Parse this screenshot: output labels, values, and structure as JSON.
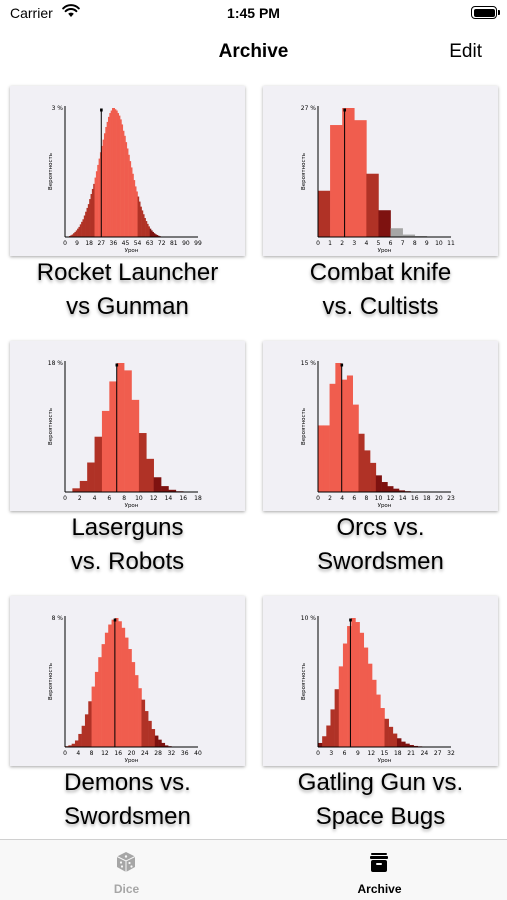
{
  "status_bar": {
    "carrier": "Carrier",
    "time": "1:45 PM"
  },
  "nav": {
    "title": "Archive",
    "edit_label": "Edit"
  },
  "colors": {
    "bar_main": "#f05d4e",
    "bar_dark": "#b03226",
    "bar_darker": "#7e1210",
    "bar_gray": "#a6a6a6",
    "card_bg": "#f1f0f5",
    "tab_inactive": "#a6a6a6",
    "tab_active": "#000000"
  },
  "items": [
    {
      "title_line1": "Rocket Launcher",
      "title_line2": "vs Gunman",
      "chart_data": {
        "type": "bar",
        "ylabel": "Вероятность",
        "xlabel": "Урон",
        "ymax_label": "3 %",
        "xlim": [
          0,
          99
        ],
        "xticks": [
          "0",
          "9",
          "18",
          "27",
          "36",
          "45",
          "54",
          "63",
          "72",
          "81",
          "90",
          "99"
        ],
        "mean": 27,
        "values": [
          0.05,
          0.1,
          0.2,
          0.4,
          0.7,
          1,
          1.5,
          2,
          2.6,
          3.3,
          4,
          5,
          6,
          7,
          8.5,
          10,
          11.5,
          13,
          15,
          17,
          19,
          21,
          23.5,
          26,
          28.5,
          31,
          33.5,
          36,
          38.5,
          41,
          43.5,
          45.5,
          47.5,
          49,
          50,
          51,
          51,
          50.5,
          50,
          49,
          48,
          46.5,
          44.5,
          42,
          40,
          37.5,
          35,
          32.5,
          30,
          27.5,
          25,
          22.5,
          20,
          18,
          16,
          14,
          12,
          10.5,
          9,
          7.5,
          6.3,
          5.2,
          4.2,
          3.3,
          2.6,
          2,
          1.5,
          1.1,
          0.8,
          0.55,
          0.35,
          0.2,
          0.1,
          0.05
        ],
        "colors": [
          "dark",
          "dark",
          "dark",
          "dark",
          "dark",
          "dark",
          "dark",
          "dark",
          "dark",
          "dark",
          "dark",
          "dark",
          "dark",
          "dark",
          "dark",
          "dark",
          "dark",
          "dark",
          "dark",
          "dark",
          "dark",
          "dark",
          "main",
          "main",
          "main",
          "main",
          "main",
          "main",
          "main",
          "main",
          "main",
          "main",
          "main",
          "main",
          "main",
          "main",
          "main",
          "main",
          "main",
          "main",
          "main",
          "main",
          "main",
          "main",
          "main",
          "main",
          "main",
          "main",
          "main",
          "main",
          "main",
          "main",
          "main",
          "main",
          "dark",
          "dark",
          "dark",
          "dark",
          "dark",
          "dark",
          "dark",
          "dark",
          "dark",
          "darker",
          "darker",
          "darker",
          "darker",
          "darker",
          "darker",
          "darker",
          "darker",
          "darker",
          "darker",
          "darker"
        ]
      }
    },
    {
      "title_line1": "Combat knife",
      "title_line2": "vs. Cultists",
      "chart_data": {
        "type": "bar",
        "ylabel": "Вероятность",
        "xlabel": "Урон",
        "ymax_label": "27 %",
        "xlim": [
          0,
          11
        ],
        "xticks": [
          "0",
          "1",
          "2",
          "3",
          "4",
          "5",
          "6",
          "7",
          "8",
          "9",
          "10",
          "11"
        ],
        "mean": 2.2,
        "values": [
          9.5,
          23,
          26.5,
          24,
          13,
          5.5,
          1.8,
          0.5,
          0.2,
          0.1,
          0.05
        ],
        "colors": [
          "dark",
          "main",
          "main",
          "main",
          "dark",
          "darker",
          "gray",
          "gray",
          "gray",
          "gray",
          "gray"
        ]
      }
    },
    {
      "title_line1": "Laserguns",
      "title_line2": "vs. Robots",
      "chart_data": {
        "type": "bar",
        "ylabel": "Вероятность",
        "xlabel": "Урон",
        "ymax_label": "18 %",
        "xlim": [
          0,
          18
        ],
        "xticks": [
          "0",
          "2",
          "4",
          "6",
          "8",
          "10",
          "12",
          "14",
          "16",
          "18"
        ],
        "mean": 7,
        "values": [
          0.05,
          0.5,
          1.5,
          4,
          7.5,
          11,
          15,
          17.5,
          16.5,
          12.5,
          8,
          4.5,
          2,
          0.8,
          0.3,
          0.1
        ],
        "colors": [
          "dark",
          "dark",
          "dark",
          "dark",
          "dark",
          "main",
          "main",
          "main",
          "main",
          "main",
          "dark",
          "dark",
          "darker",
          "darker",
          "darker",
          "darker"
        ]
      }
    },
    {
      "title_line1": "Orcs vs.",
      "title_line2": "Swordsmen",
      "chart_data": {
        "type": "bar",
        "ylabel": "Вероятность",
        "xlabel": "Урон",
        "ymax_label": "15 %",
        "xlim": [
          0,
          23
        ],
        "xticks": [
          "0",
          "2",
          "4",
          "6",
          "8",
          "10",
          "12",
          "14",
          "16",
          "18",
          "20",
          "23"
        ],
        "mean": 4.1,
        "values": [
          8,
          8,
          13,
          15.5,
          13.5,
          14,
          10.5,
          7,
          5,
          3.5,
          2,
          1.2,
          0.7,
          0.4,
          0.2,
          0.1,
          0.05
        ],
        "colors": [
          "main",
          "main",
          "main",
          "main",
          "main",
          "main",
          "main",
          "dark",
          "dark",
          "dark",
          "darker",
          "darker",
          "darker",
          "darker",
          "darker",
          "darker",
          "darker"
        ]
      }
    },
    {
      "title_line1": "Demons vs.",
      "title_line2": "Swordsmen",
      "chart_data": {
        "type": "bar",
        "ylabel": "Вероятность",
        "xlabel": "Урон",
        "ymax_label": "8 %",
        "xlim": [
          0,
          40
        ],
        "xticks": [
          "0",
          "4",
          "8",
          "12",
          "16",
          "20",
          "24",
          "28",
          "32",
          "36",
          "40"
        ],
        "mean": 15,
        "values": [
          0.05,
          0.1,
          0.2,
          0.4,
          0.8,
          1.3,
          2,
          2.8,
          3.7,
          4.6,
          5.5,
          6.3,
          7,
          7.5,
          7.8,
          7.9,
          7.7,
          7.3,
          6.7,
          6,
          5.2,
          4.4,
          3.6,
          2.9,
          2.2,
          1.6,
          1.1,
          0.7,
          0.45,
          0.25,
          0.1,
          0.05
        ],
        "colors": [
          "dark",
          "dark",
          "dark",
          "dark",
          "dark",
          "dark",
          "dark",
          "dark",
          "main",
          "main",
          "main",
          "main",
          "main",
          "main",
          "main",
          "main",
          "main",
          "main",
          "main",
          "main",
          "main",
          "main",
          "main",
          "dark",
          "dark",
          "dark",
          "dark",
          "darker",
          "darker",
          "darker",
          "darker",
          "darker"
        ]
      }
    },
    {
      "title_line1": "Gatling Gun vs.",
      "title_line2": "Space Bugs",
      "chart_data": {
        "type": "bar",
        "ylabel": "Вероятность",
        "xlabel": "Урон",
        "ymax_label": "10 %",
        "xlim": [
          0,
          32
        ],
        "xticks": [
          "0",
          "3",
          "6",
          "9",
          "12",
          "15",
          "18",
          "21",
          "24",
          "27",
          "32"
        ],
        "mean": 7.8,
        "values": [
          0.3,
          0.8,
          1.6,
          2.8,
          4.3,
          6,
          7.7,
          9,
          9.6,
          9.3,
          8.5,
          7.4,
          6.2,
          5,
          3.9,
          2.9,
          2.1,
          1.5,
          1,
          0.65,
          0.4,
          0.25,
          0.15,
          0.08,
          0.05
        ],
        "colors": [
          "darker",
          "dark",
          "dark",
          "dark",
          "dark",
          "main",
          "main",
          "main",
          "main",
          "main",
          "main",
          "main",
          "main",
          "main",
          "main",
          "main",
          "dark",
          "dark",
          "dark",
          "darker",
          "darker",
          "darker",
          "darker",
          "darker",
          "darker"
        ]
      }
    }
  ],
  "tabs": [
    {
      "label": "Dice",
      "icon": "dice-icon",
      "active": false
    },
    {
      "label": "Archive",
      "icon": "archive-box-icon",
      "active": true
    }
  ]
}
